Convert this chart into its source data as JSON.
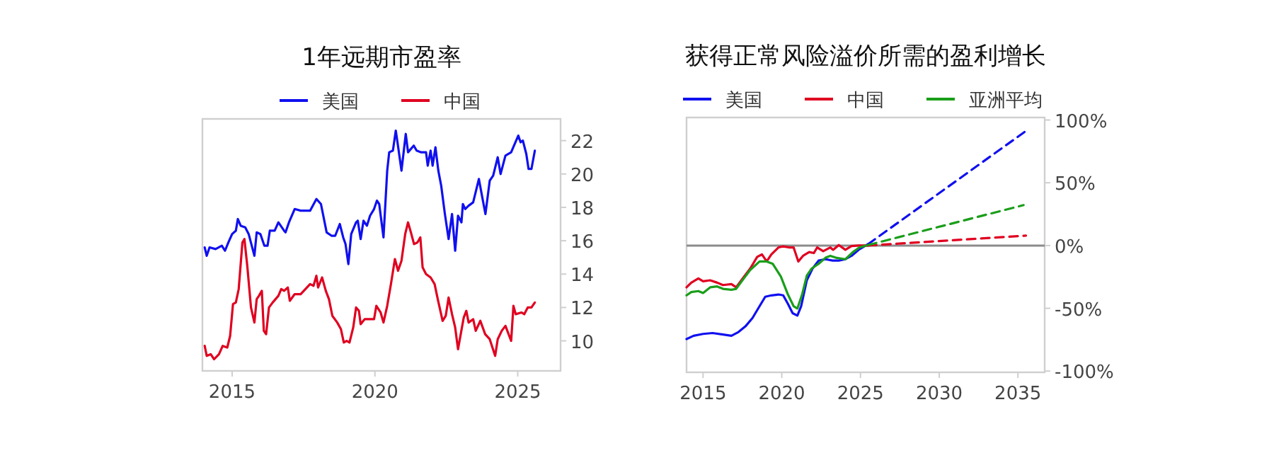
{
  "chart_data": [
    {
      "type": "line",
      "title": "1年远期市盈率",
      "legend": "top",
      "line_style": "solid",
      "xlim": [
        2013.96,
        2026.5
      ],
      "xticks": [
        2015,
        2020,
        2025
      ],
      "ylim": [
        8.2,
        23.3
      ],
      "yticks": [
        10,
        12,
        14,
        16,
        18,
        20,
        22
      ],
      "series": [
        {
          "name": "美国",
          "color": "#1010f0",
          "x": [
            2014.04,
            2014.11,
            2014.21,
            2014.42,
            2014.64,
            2014.75,
            2014.87,
            2015.0,
            2015.13,
            2015.2,
            2015.3,
            2015.46,
            2015.58,
            2015.78,
            2015.86,
            2015.99,
            2016.13,
            2016.24,
            2016.32,
            2016.49,
            2016.62,
            2016.82,
            2016.87,
            2016.99,
            2017.19,
            2017.4,
            2017.6,
            2017.73,
            2017.95,
            2018.11,
            2018.31,
            2018.48,
            2018.61,
            2018.77,
            2018.89,
            2018.97,
            2019.07,
            2019.17,
            2019.34,
            2019.4,
            2019.5,
            2019.6,
            2019.72,
            2019.83,
            2019.97,
            2020.07,
            2020.15,
            2020.3,
            2020.43,
            2020.5,
            2020.63,
            2020.73,
            2020.79,
            2020.93,
            2021.08,
            2021.16,
            2021.36,
            2021.46,
            2021.62,
            2021.79,
            2021.85,
            2021.95,
            2022.02,
            2022.12,
            2022.22,
            2022.32,
            2022.45,
            2022.58,
            2022.7,
            2022.81,
            2022.91,
            2023.03,
            2023.08,
            2023.16,
            2023.28,
            2023.44,
            2023.64,
            2023.77,
            2023.87,
            2024.02,
            2024.14,
            2024.3,
            2024.4,
            2024.57,
            2024.77,
            2024.87,
            2025.02,
            2025.1,
            2025.18,
            2025.3,
            2025.38,
            2025.48,
            2025.6
          ],
          "values": [
            15.6,
            15.1,
            15.6,
            15.5,
            15.7,
            15.4,
            15.9,
            16.4,
            16.6,
            17.3,
            16.9,
            16.8,
            16.4,
            15.1,
            16.5,
            16.4,
            15.7,
            15.7,
            16.6,
            16.6,
            17.1,
            16.6,
            16.5,
            17.1,
            17.9,
            17.8,
            17.8,
            17.8,
            18.5,
            18.2,
            16.5,
            16.3,
            16.3,
            17.0,
            16.2,
            15.8,
            14.6,
            16.4,
            17.1,
            17.2,
            16.1,
            17.2,
            16.9,
            17.5,
            17.9,
            18.4,
            18.2,
            16.2,
            20.2,
            21.3,
            21.4,
            22.6,
            21.9,
            20.2,
            22.4,
            21.3,
            21.7,
            21.4,
            21.3,
            21.3,
            20.5,
            21.4,
            20.5,
            21.6,
            20.2,
            19.3,
            17.6,
            16.1,
            17.6,
            15.4,
            17.5,
            17.1,
            18.2,
            17.9,
            18.1,
            18.3,
            19.7,
            18.5,
            17.6,
            19.6,
            19.9,
            21.0,
            20.0,
            21.1,
            21.3,
            21.7,
            22.3,
            21.9,
            22.0,
            21.2,
            20.3,
            20.3,
            21.4
          ]
        },
        {
          "name": "中国",
          "color": "#e00020",
          "x": [
            2014.04,
            2014.11,
            2014.25,
            2014.37,
            2014.54,
            2014.67,
            2014.83,
            2014.93,
            2015.03,
            2015.13,
            2015.23,
            2015.36,
            2015.43,
            2015.53,
            2015.66,
            2015.78,
            2015.86,
            2015.94,
            2016.04,
            2016.11,
            2016.19,
            2016.29,
            2016.42,
            2016.62,
            2016.72,
            2016.82,
            2016.95,
            2017.02,
            2017.19,
            2017.4,
            2017.62,
            2017.73,
            2017.85,
            2017.95,
            2018.01,
            2018.15,
            2018.28,
            2018.39,
            2018.51,
            2018.68,
            2018.81,
            2018.91,
            2019.01,
            2019.11,
            2019.24,
            2019.34,
            2019.44,
            2019.5,
            2019.64,
            2019.8,
            2019.97,
            2020.05,
            2020.2,
            2020.3,
            2020.43,
            2020.56,
            2020.7,
            2020.81,
            2020.93,
            2021.06,
            2021.16,
            2021.26,
            2021.37,
            2021.49,
            2021.59,
            2021.67,
            2021.79,
            2021.95,
            2022.09,
            2022.2,
            2022.37,
            2022.48,
            2022.58,
            2022.7,
            2022.81,
            2022.91,
            2023.11,
            2023.2,
            2023.28,
            2023.44,
            2023.53,
            2023.69,
            2023.86,
            2024.02,
            2024.21,
            2024.3,
            2024.44,
            2024.57,
            2024.77,
            2024.85,
            2024.93,
            2025.13,
            2025.23,
            2025.35,
            2025.48,
            2025.6
          ],
          "values": [
            9.7,
            9.1,
            9.2,
            8.9,
            9.2,
            9.7,
            9.6,
            10.3,
            12.2,
            12.3,
            13.1,
            15.9,
            16.1,
            14.5,
            12.0,
            11.1,
            12.5,
            12.7,
            13.0,
            10.6,
            10.4,
            12.0,
            12.3,
            12.7,
            13.1,
            13.0,
            13.2,
            12.4,
            12.8,
            12.8,
            13.2,
            13.4,
            13.3,
            13.9,
            13.2,
            13.8,
            13.0,
            12.5,
            11.5,
            11.1,
            10.7,
            9.9,
            10.0,
            9.9,
            10.8,
            12.0,
            11.8,
            11.0,
            11.3,
            11.3,
            11.3,
            12.1,
            11.7,
            11.1,
            12.1,
            13.4,
            14.9,
            14.2,
            14.8,
            16.4,
            17.1,
            16.5,
            15.8,
            15.9,
            16.2,
            14.4,
            14.0,
            13.8,
            13.4,
            12.5,
            11.2,
            11.5,
            12.6,
            11.6,
            10.8,
            9.5,
            11.4,
            11.8,
            11.1,
            11.3,
            10.6,
            11.2,
            10.4,
            10.1,
            9.1,
            10.1,
            10.6,
            10.9,
            10.0,
            12.1,
            11.6,
            11.7,
            11.6,
            12.0,
            12.0,
            12.3
          ]
        }
      ]
    },
    {
      "type": "line",
      "title": "获得正常风险溢价所需的盈利增长",
      "legend": "top",
      "line_style": "solid",
      "xlim": [
        2013.95,
        2036.7
      ],
      "xticks": [
        2015,
        2020,
        2025,
        2030,
        2035
      ],
      "ylim": [
        -101,
        102
      ],
      "yticks": [
        {
          "value": -100,
          "label": "-100%"
        },
        {
          "value": -50,
          "label": "-50%"
        },
        {
          "value": 0,
          "label": "0%"
        },
        {
          "value": 50,
          "label": "50%"
        },
        {
          "value": 100,
          "label": "100%"
        }
      ],
      "ref_lines": [
        {
          "axis": "y",
          "value": 0,
          "color": "#8c8c8c"
        }
      ],
      "series": [
        {
          "name": "美国",
          "color": "#1010f0",
          "x": [
            2013.95,
            2014.4,
            2015.0,
            2015.6,
            2016.2,
            2016.8,
            2017.25,
            2017.69,
            2018.14,
            2018.59,
            2018.95,
            2019.34,
            2019.79,
            2020.09,
            2020.39,
            2020.69,
            2020.99,
            2021.23,
            2021.59,
            2021.95,
            2022.34,
            2022.78,
            2023.23,
            2023.62,
            2024.04,
            2024.43,
            2024.88,
            2025.48
          ],
          "values": [
            -74.5,
            -71.9,
            -70.4,
            -69.7,
            -70.8,
            -71.9,
            -68.9,
            -64.4,
            -57.7,
            -48.3,
            -40.8,
            -39.7,
            -39.0,
            -39.7,
            -46.4,
            -53.9,
            -55.8,
            -48.3,
            -27.7,
            -18.4,
            -12.0,
            -10.9,
            -12.0,
            -12.0,
            -10.9,
            -8.2,
            -3.4,
            1.1
          ]
        },
        {
          "name": "中国",
          "color": "#e00020",
          "x": [
            2013.95,
            2014.25,
            2014.7,
            2015.0,
            2015.45,
            2015.9,
            2016.26,
            2016.8,
            2017.1,
            2017.54,
            2017.99,
            2018.44,
            2018.74,
            2019.04,
            2019.34,
            2019.79,
            2020.09,
            2020.45,
            2020.75,
            2021.05,
            2021.35,
            2021.74,
            2022.04,
            2022.25,
            2022.63,
            2023.08,
            2023.26,
            2023.62,
            2024.04,
            2024.43,
            2024.88,
            2025.48
          ],
          "values": [
            -33.3,
            -29.6,
            -26.2,
            -28.5,
            -27.7,
            -29.6,
            -31.5,
            -30.7,
            -33.3,
            -25.8,
            -18.4,
            -9.0,
            -7.1,
            -12.7,
            -7.1,
            -1.5,
            -0.7,
            -1.5,
            -1.5,
            -12.7,
            -8.2,
            -5.2,
            -6.0,
            -1.5,
            -4.5,
            -1.5,
            -3.4,
            0.4,
            -3.4,
            -0.4,
            0.0,
            0.0
          ]
        },
        {
          "name": "亚洲平均",
          "color": "#1a9e1a",
          "x": [
            2013.95,
            2014.25,
            2014.7,
            2015.0,
            2015.45,
            2015.9,
            2016.26,
            2016.8,
            2017.1,
            2017.54,
            2017.99,
            2018.59,
            2019.04,
            2019.43,
            2019.94,
            2020.39,
            2020.75,
            2020.99,
            2021.29,
            2021.59,
            2021.89,
            2022.34,
            2022.78,
            2023.08,
            2023.44,
            2024.04,
            2024.52,
            2024.94,
            2025.48
          ],
          "values": [
            -39.7,
            -37.1,
            -36.3,
            -37.8,
            -33.3,
            -32.6,
            -34.5,
            -35.2,
            -34.5,
            -27.0,
            -19.5,
            -12.7,
            -12.7,
            -14.6,
            -24.7,
            -39.0,
            -48.3,
            -50.2,
            -39.0,
            -24.0,
            -18.4,
            -14.6,
            -9.7,
            -8.2,
            -9.7,
            -10.9,
            -5.2,
            -1.5,
            0.4
          ]
        },
        {
          "color": "#1010f0",
          "line_style": "dashed",
          "x": [
            2025.48,
            2035.6
          ],
          "values": [
            1.1,
            92.1
          ]
        },
        {
          "color": "#e00020",
          "line_style": "dashed",
          "x": [
            2025.48,
            2035.51
          ],
          "values": [
            0.0,
            7.9
          ]
        },
        {
          "color": "#1a9e1a",
          "line_style": "dashed",
          "x": [
            2025.48,
            2035.36
          ],
          "values": [
            0.4,
            32.2
          ]
        }
      ]
    }
  ]
}
